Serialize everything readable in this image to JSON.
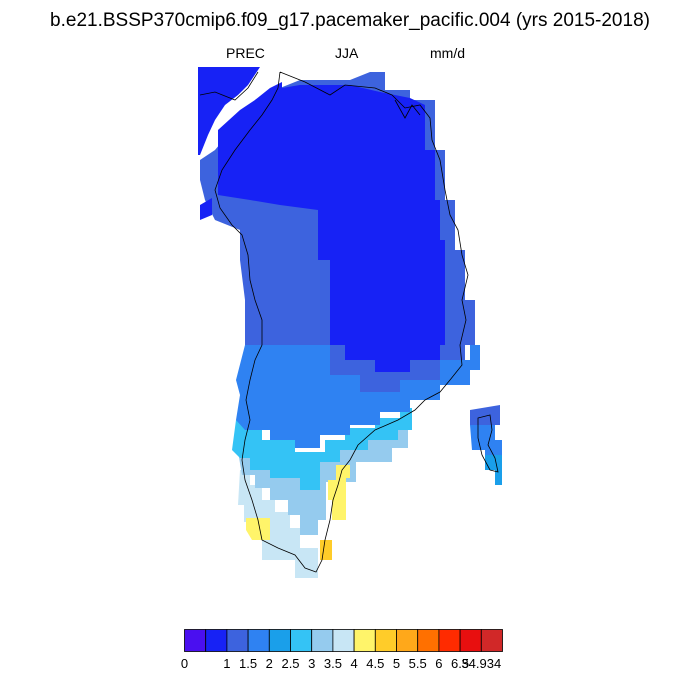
{
  "title": "b.e21.BSSP370cmip6.f09_g17.pacemaker_pacific.004 (yrs 2015-2018)",
  "subtitle": {
    "variable": "PREC",
    "season": "JJA",
    "units": "mm/d"
  },
  "colorbar": {
    "colors": [
      "#4a0ff0",
      "#1722f5",
      "#3d63de",
      "#2f82f2",
      "#1a9fea",
      "#34c3f5",
      "#95cbee",
      "#c8e6f5",
      "#fff46a",
      "#ffcc29",
      "#ffa81a",
      "#ff7000",
      "#ff2b00",
      "#e80f0f",
      "#d12828"
    ],
    "labels": [
      "0",
      "1",
      "1.5",
      "2",
      "2.5",
      "3",
      "3.5",
      "4",
      "4.5",
      "5",
      "5.5",
      "6",
      "6.5",
      "34.934"
    ]
  }
}
